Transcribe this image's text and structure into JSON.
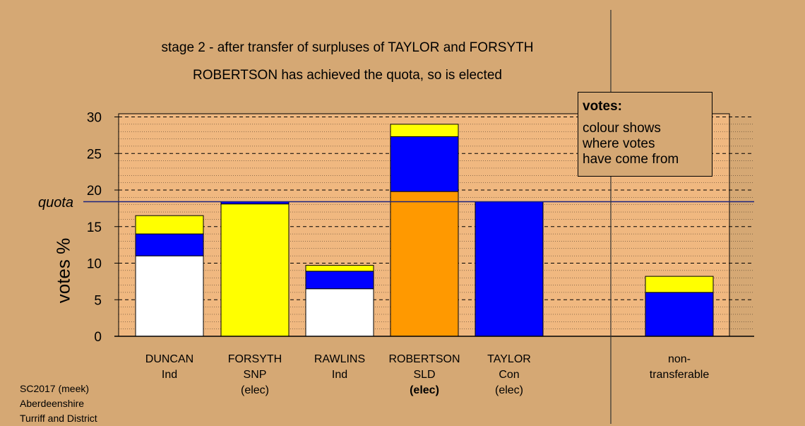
{
  "chart_data": {
    "type": "bar",
    "stacked": true,
    "title": "stage 2 - after transfer of surpluses of TAYLOR and FORSYTH",
    "subtitle": "ROBERTSON has achieved the quota, so is elected",
    "ylabel": "votes %",
    "ylim": [
      0,
      30
    ],
    "yticks": [
      "0",
      "5",
      "10",
      "15",
      "20",
      "25",
      "30"
    ],
    "quota": 18.4,
    "quota_label": "quota",
    "grid": true,
    "categories": [
      {
        "lines": [
          "DUNCAN",
          "Ind",
          ""
        ],
        "bold_last": false
      },
      {
        "lines": [
          "FORSYTH",
          "SNP",
          "(elec)"
        ],
        "bold_last": false
      },
      {
        "lines": [
          "RAWLINS",
          "Ind",
          ""
        ],
        "bold_last": false
      },
      {
        "lines": [
          "ROBERTSON",
          "SLD",
          "(elec)"
        ],
        "bold_last": true
      },
      {
        "lines": [
          "TAYLOR",
          "Con",
          "(elec)"
        ],
        "bold_last": false
      },
      {
        "lines": [
          "non-",
          "transferable",
          ""
        ],
        "bold_last": false
      }
    ],
    "bars": [
      [
        {
          "value": 11.0,
          "color": "#ffffff"
        },
        {
          "value": 3.0,
          "color": "#0000ff"
        },
        {
          "value": 2.5,
          "color": "#ffff00"
        }
      ],
      [
        {
          "value": 18.1,
          "color": "#ffff00"
        },
        {
          "value": 0.3,
          "color": "#0000ff"
        }
      ],
      [
        {
          "value": 6.5,
          "color": "#ffffff"
        },
        {
          "value": 2.4,
          "color": "#0000ff"
        },
        {
          "value": 0.8,
          "color": "#ffff00"
        }
      ],
      [
        {
          "value": 19.8,
          "color": "#ff9900"
        },
        {
          "value": 7.5,
          "color": "#0000ff"
        },
        {
          "value": 1.7,
          "color": "#ffff00"
        }
      ],
      [
        {
          "value": 18.4,
          "color": "#0000ff"
        }
      ],
      [
        {
          "value": 6.0,
          "color": "#0000ff"
        },
        {
          "value": 2.2,
          "color": "#ffff00"
        }
      ]
    ],
    "legend": {
      "title": "votes:",
      "lines": [
        "colour shows",
        "where votes",
        "have come from"
      ],
      "position": "top-right"
    }
  },
  "footer": {
    "line1": "SC2017 (meek)",
    "line2": "Aberdeenshire",
    "line3": "Turriff and District"
  },
  "colors": {
    "background": "#d5a874",
    "plot_area": "#f0b880",
    "white": "#ffffff",
    "blue": "#0000ff",
    "yellow": "#ffff00",
    "orange": "#ff9900"
  }
}
